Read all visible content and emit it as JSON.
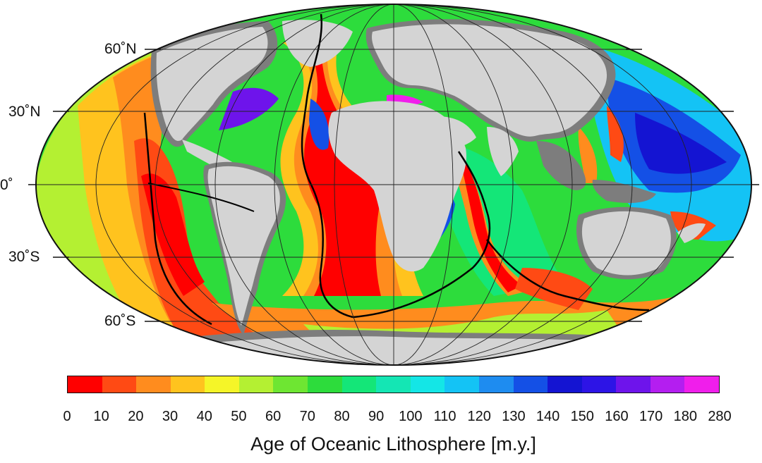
{
  "map": {
    "projection": "mollweide",
    "lat_labels": {
      "n60": "60˚N",
      "n30": "30˚N",
      "eq": "0˚",
      "s30": "30˚S",
      "s60": "60˚S"
    },
    "land_color": "#d4d4d4",
    "shelf_color": "#7d7d7d",
    "ridge_color": "#000000"
  },
  "legend": {
    "title": "Age of Oceanic Lithosphere [m.y.]",
    "ticks": [
      "0",
      "10",
      "20",
      "30",
      "40",
      "50",
      "60",
      "70",
      "80",
      "90",
      "100",
      "110",
      "120",
      "130",
      "140",
      "150",
      "160",
      "170",
      "180",
      "280"
    ],
    "colors": [
      "#ff0000",
      "#ff4a14",
      "#ff8c1e",
      "#ffc31e",
      "#f5f528",
      "#b4f032",
      "#6ee632",
      "#2ddc3c",
      "#14e678",
      "#14e6b4",
      "#14e6e6",
      "#14c3f5",
      "#1e8cf0",
      "#1450e6",
      "#1414d2",
      "#2d14e6",
      "#6e14eb",
      "#b41ef0",
      "#f01eeb"
    ]
  }
}
